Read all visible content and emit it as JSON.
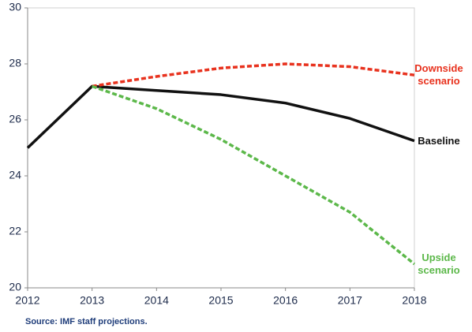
{
  "chart_data": {
    "type": "line",
    "x": [
      2012,
      2013,
      2014,
      2015,
      2016,
      2017,
      2018
    ],
    "xlim": [
      2012,
      2018
    ],
    "xticks": [
      2012,
      2013,
      2014,
      2015,
      2016,
      2017,
      2018
    ],
    "ylim": [
      20,
      30
    ],
    "yticks": [
      20,
      22,
      24,
      26,
      28,
      30
    ],
    "series": [
      {
        "name": "Baseline",
        "color": "#111111",
        "dashed": false,
        "values": [
          25.0,
          27.2,
          27.05,
          26.9,
          26.6,
          26.05,
          25.25
        ]
      },
      {
        "name": "Downside scenario",
        "color": "#e8321e",
        "dashed": true,
        "values": [
          null,
          27.2,
          27.55,
          27.85,
          28.0,
          27.9,
          27.6
        ]
      },
      {
        "name": "Upside scenario",
        "color": "#5cb84a",
        "dashed": true,
        "values": [
          null,
          27.2,
          26.4,
          25.3,
          24.0,
          22.7,
          20.85
        ]
      }
    ],
    "source": "Source: IMF staff projections."
  }
}
